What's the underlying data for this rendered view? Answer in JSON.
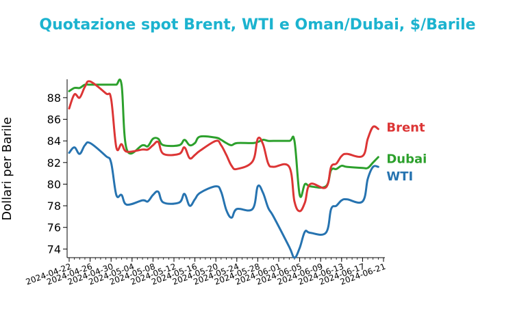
{
  "colors": {
    "title": "#1cb3cf",
    "brent": "#dc3535",
    "wti": "#2673b0",
    "dubai": "#2ca02c",
    "axis": "#000000"
  },
  "chart_data": {
    "type": "line",
    "title": "Quotazione spot Brent, WTI e Oman/Dubai, $/Barile",
    "xlabel": "",
    "ylabel": "Dollari per Barile",
    "ylim": [
      73.2,
      89.7
    ],
    "yticks": [
      74,
      76,
      78,
      80,
      82,
      84,
      86,
      88
    ],
    "xlim": [
      "2024-04-22",
      "2024-06-21"
    ],
    "xticks": [
      "2024-04-22",
      "2024-04-26",
      "2024-04-30",
      "2024-05-04",
      "2024-05-08",
      "2024-05-12",
      "2024-05-16",
      "2024-05-20",
      "2024-05-24",
      "2024-05-28",
      "2024-06-01",
      "2024-06-05",
      "2024-06-09",
      "2024-06-13",
      "2024-06-17",
      "2024-06-21"
    ],
    "grid": false,
    "legend": "series labels at right end of lines",
    "series": [
      {
        "name": "Brent",
        "x": [
          "2024-04-22",
          "2024-04-23",
          "2024-04-24",
          "2024-04-25",
          "2024-04-26",
          "2024-04-29",
          "2024-04-30",
          "2024-05-01",
          "2024-05-02",
          "2024-05-03",
          "2024-05-06",
          "2024-05-07",
          "2024-05-08",
          "2024-05-09",
          "2024-05-10",
          "2024-05-13",
          "2024-05-14",
          "2024-05-15",
          "2024-05-16",
          "2024-05-17",
          "2024-05-20",
          "2024-05-21",
          "2024-05-22",
          "2024-05-23",
          "2024-05-24",
          "2024-05-27",
          "2024-05-28",
          "2024-05-29",
          "2024-05-30",
          "2024-05-31",
          "2024-06-03",
          "2024-06-04",
          "2024-06-05",
          "2024-06-06",
          "2024-06-07",
          "2024-06-10",
          "2024-06-11",
          "2024-06-12",
          "2024-06-13",
          "2024-06-14",
          "2024-06-17",
          "2024-06-18",
          "2024-06-19",
          "2024-06-20"
        ],
        "values": [
          87.0,
          88.3,
          88.0,
          89.0,
          89.5,
          88.4,
          87.9,
          83.4,
          83.7,
          83.0,
          83.2,
          83.2,
          83.6,
          83.9,
          82.8,
          82.8,
          83.4,
          82.4,
          82.7,
          83.1,
          84.0,
          83.6,
          82.7,
          81.7,
          81.4,
          82.1,
          84.2,
          83.7,
          81.9,
          81.6,
          81.6,
          78.4,
          77.5,
          78.3,
          80.0,
          79.7,
          81.6,
          81.9,
          82.6,
          82.8,
          82.6,
          84.2,
          85.3,
          85.1
        ],
        "label_value": 85.3
      },
      {
        "name": "WTI",
        "x": [
          "2024-04-22",
          "2024-04-23",
          "2024-04-24",
          "2024-04-25",
          "2024-04-26",
          "2024-04-29",
          "2024-04-30",
          "2024-05-01",
          "2024-05-02",
          "2024-05-03",
          "2024-05-06",
          "2024-05-07",
          "2024-05-08",
          "2024-05-09",
          "2024-05-10",
          "2024-05-13",
          "2024-05-14",
          "2024-05-15",
          "2024-05-16",
          "2024-05-17",
          "2024-05-20",
          "2024-05-21",
          "2024-05-22",
          "2024-05-23",
          "2024-05-24",
          "2024-05-27",
          "2024-05-28",
          "2024-05-29",
          "2024-05-30",
          "2024-05-31",
          "2024-06-03",
          "2024-06-04",
          "2024-06-05",
          "2024-06-06",
          "2024-06-07",
          "2024-06-10",
          "2024-06-11",
          "2024-06-12",
          "2024-06-13",
          "2024-06-14",
          "2024-06-17",
          "2024-06-18",
          "2024-06-19",
          "2024-06-20"
        ],
        "values": [
          82.9,
          83.4,
          82.8,
          83.6,
          83.8,
          82.6,
          82.0,
          79.0,
          79.0,
          78.1,
          78.5,
          78.4,
          79.0,
          79.3,
          78.3,
          78.3,
          79.1,
          78.0,
          78.6,
          79.2,
          79.8,
          79.3,
          77.6,
          76.9,
          77.7,
          77.7,
          79.8,
          79.2,
          77.8,
          77.0,
          74.2,
          73.2,
          74.1,
          75.6,
          75.5,
          75.5,
          77.7,
          78.0,
          78.5,
          78.6,
          78.4,
          80.5,
          81.6,
          81.6
        ],
        "label_value": 80.8
      },
      {
        "name": "Dubai",
        "x": [
          "2024-04-22",
          "2024-04-23",
          "2024-04-24",
          "2024-04-25",
          "2024-04-26",
          "2024-04-29",
          "2024-04-30",
          "2024-05-01",
          "2024-05-02",
          "2024-05-03",
          "2024-05-06",
          "2024-05-07",
          "2024-05-08",
          "2024-05-09",
          "2024-05-10",
          "2024-05-13",
          "2024-05-14",
          "2024-05-15",
          "2024-05-16",
          "2024-05-17",
          "2024-05-20",
          "2024-05-21",
          "2024-05-22",
          "2024-05-23",
          "2024-05-24",
          "2024-05-27",
          "2024-05-28",
          "2024-05-29",
          "2024-05-30",
          "2024-05-31",
          "2024-06-03",
          "2024-06-04",
          "2024-06-05",
          "2024-06-06",
          "2024-06-07",
          "2024-06-10",
          "2024-06-11",
          "2024-06-12",
          "2024-06-13",
          "2024-06-14",
          "2024-06-17",
          "2024-06-18",
          "2024-06-19",
          "2024-06-20"
        ],
        "values": [
          88.6,
          88.9,
          88.9,
          89.2,
          89.2,
          89.2,
          89.2,
          89.2,
          89.2,
          83.2,
          83.6,
          83.5,
          84.2,
          84.2,
          83.6,
          83.6,
          84.1,
          83.6,
          83.8,
          84.4,
          84.3,
          84.1,
          83.8,
          83.6,
          83.8,
          83.8,
          83.9,
          84.1,
          84.0,
          84.0,
          84.0,
          84.0,
          79.0,
          80.0,
          79.8,
          79.8,
          81.3,
          81.4,
          81.7,
          81.6,
          81.5,
          81.5,
          82.0,
          82.5
        ],
        "label_value": 82.4
      }
    ]
  }
}
